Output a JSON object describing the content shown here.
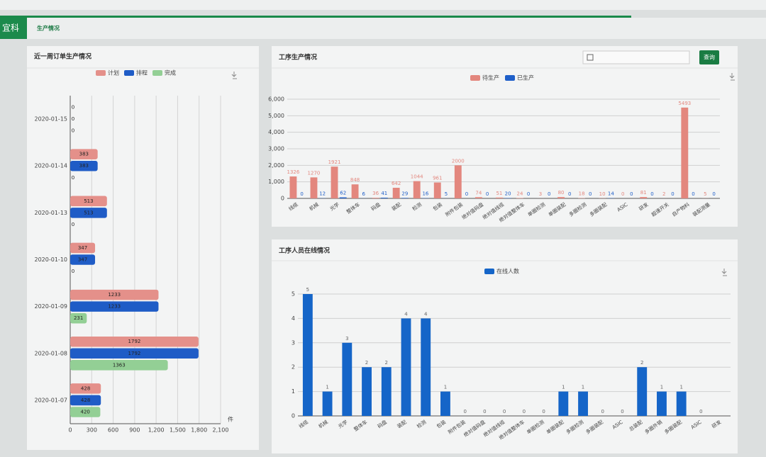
{
  "header": {
    "brand": "宜科",
    "tab": "生产情况"
  },
  "query_button": "查询",
  "chart_data": [
    {
      "type": "hbar",
      "title": "近一周订单生产情况",
      "categories": [
        "2020-01-15",
        "2020-01-14",
        "2020-01-13",
        "2020-01-10",
        "2020-01-09",
        "2020-01-08",
        "2020-01-07"
      ],
      "series": [
        {
          "name": "计划",
          "color": "#e4908a",
          "values": [
            0,
            383,
            513,
            347,
            1233,
            1792,
            428
          ]
        },
        {
          "name": "排程",
          "color": "#1f5cc6",
          "values": [
            0,
            383,
            513,
            347,
            1233,
            1792,
            428
          ]
        },
        {
          "name": "完成",
          "color": "#93cf95",
          "values": [
            0,
            0,
            0,
            0,
            231,
            1363,
            420
          ]
        }
      ],
      "xlim": [
        0,
        2100
      ],
      "xticks": [
        0,
        300,
        600,
        900,
        {
          "value": 1200,
          "label": "1,200"
        },
        {
          "value": 1500,
          "label": "1,500"
        },
        {
          "value": 1800,
          "label": "1,800"
        },
        {
          "value": 2100,
          "label": "2,100"
        }
      ],
      "x_label": "件",
      "grid": true
    },
    {
      "type": "vbar",
      "title": "工序生产情况",
      "categories": [
        "线缆",
        "机械",
        "光学",
        "整体车",
        "码盘",
        "装配",
        "检测",
        "包装",
        "附件包装",
        "绝对值码盘",
        "绝对值线缆",
        "绝对值整体车",
        "单圈检测",
        "单圈装配",
        "多圈检测",
        "多圈装配",
        "ASIC",
        "研发",
        "超速开关",
        "自产物料",
        "装配测量"
      ],
      "series": [
        {
          "name": "待生产",
          "color": "#e3877e",
          "values": [
            1326,
            1270,
            1921,
            848,
            36,
            642,
            1044,
            961,
            2000,
            74,
            51,
            24,
            3,
            80,
            18,
            10,
            0,
            81,
            2,
            5493,
            5
          ]
        },
        {
          "name": "已生产",
          "color": "#1f5fc9",
          "values": [
            0,
            12,
            62,
            6,
            41,
            29,
            16,
            5,
            0,
            0,
            20,
            0,
            0,
            0,
            0,
            14,
            0,
            0,
            0,
            0,
            0
          ]
        }
      ],
      "ylim": [
        0,
        6000
      ],
      "yticks": [
        0,
        {
          "value": 1000,
          "label": "1,000"
        },
        {
          "value": 2000,
          "label": "2,000"
        },
        {
          "value": 3000,
          "label": "3,000"
        },
        {
          "value": 4000,
          "label": "4,000"
        },
        {
          "value": 5000,
          "label": "5,000"
        },
        {
          "value": 6000,
          "label": "6,000"
        }
      ],
      "grid": true
    },
    {
      "type": "vbar",
      "title": "工序人员在线情况",
      "categories": [
        "线缆",
        "机械",
        "光学",
        "整体车",
        "码盘",
        "装配",
        "检测",
        "包装",
        "附件包装",
        "绝对值码盘",
        "绝对值线缆",
        "绝对值整体车",
        "单圈检测",
        "单圈装配",
        "多圈检测",
        "多圈装配",
        "ASIC",
        "总装配",
        "多圈外销",
        "多圈装配",
        "ASIC",
        "研发"
      ],
      "series": [
        {
          "name": "在线人数",
          "color": "#1565c8",
          "values": [
            5,
            1,
            3,
            2,
            2,
            4,
            4,
            1,
            0,
            0,
            0,
            0,
            0,
            1,
            1,
            0,
            0,
            2,
            1,
            1,
            0,
            null
          ]
        }
      ],
      "ylim": [
        0,
        5
      ],
      "yticks": [
        0,
        1,
        2,
        3,
        4,
        5
      ],
      "grid": true
    }
  ]
}
